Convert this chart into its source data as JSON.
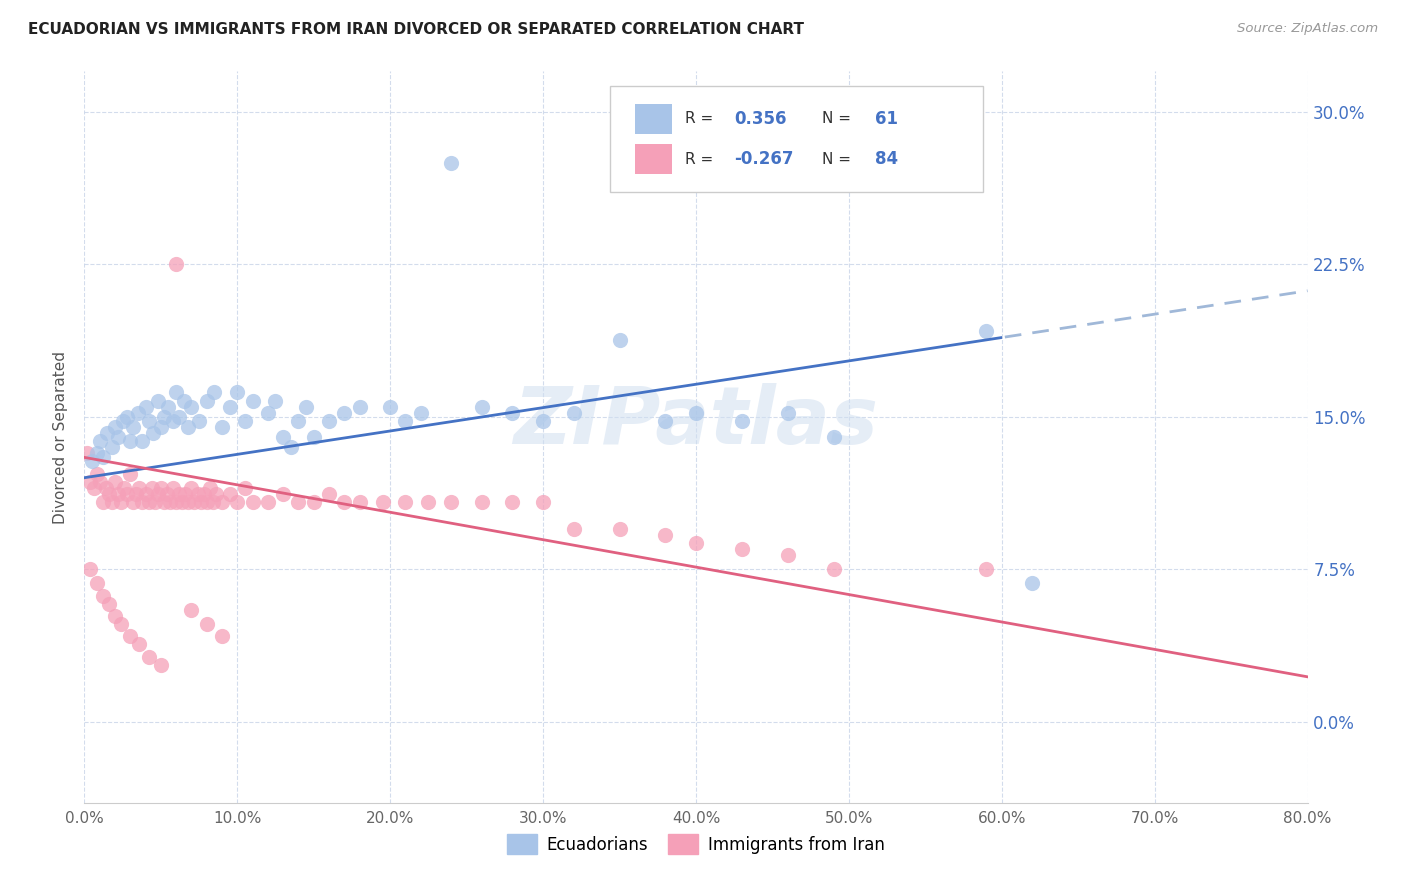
{
  "title": "ECUADORIAN VS IMMIGRANTS FROM IRAN DIVORCED OR SEPARATED CORRELATION CHART",
  "source": "Source: ZipAtlas.com",
  "ylabel_label": "Divorced or Separated",
  "legend_label1": "Ecuadorians",
  "legend_label2": "Immigrants from Iran",
  "R1": 0.356,
  "N1": 61,
  "R2": -0.267,
  "N2": 84,
  "color_blue": "#a8c4e8",
  "color_pink": "#f5a0b8",
  "color_blue_line": "#4472c4",
  "color_pink_line": "#e06080",
  "color_blue_dash": "#a0b8d8",
  "color_blue_text": "#4472c4",
  "watermark": "ZIPatlas",
  "blue_scatter_x": [
    0.005,
    0.008,
    0.01,
    0.012,
    0.015,
    0.018,
    0.02,
    0.022,
    0.025,
    0.028,
    0.03,
    0.032,
    0.035,
    0.038,
    0.04,
    0.042,
    0.045,
    0.048,
    0.05,
    0.052,
    0.055,
    0.058,
    0.06,
    0.062,
    0.065,
    0.068,
    0.07,
    0.075,
    0.08,
    0.085,
    0.09,
    0.095,
    0.1,
    0.105,
    0.11,
    0.12,
    0.125,
    0.13,
    0.135,
    0.14,
    0.145,
    0.15,
    0.16,
    0.17,
    0.18,
    0.2,
    0.21,
    0.22,
    0.24,
    0.26,
    0.28,
    0.3,
    0.32,
    0.35,
    0.38,
    0.4,
    0.43,
    0.46,
    0.49,
    0.59,
    0.62
  ],
  "blue_scatter_y": [
    0.128,
    0.132,
    0.138,
    0.13,
    0.142,
    0.135,
    0.145,
    0.14,
    0.148,
    0.15,
    0.138,
    0.145,
    0.152,
    0.138,
    0.155,
    0.148,
    0.142,
    0.158,
    0.145,
    0.15,
    0.155,
    0.148,
    0.162,
    0.15,
    0.158,
    0.145,
    0.155,
    0.148,
    0.158,
    0.162,
    0.145,
    0.155,
    0.162,
    0.148,
    0.158,
    0.152,
    0.158,
    0.14,
    0.135,
    0.148,
    0.155,
    0.14,
    0.148,
    0.152,
    0.155,
    0.155,
    0.148,
    0.152,
    0.275,
    0.155,
    0.152,
    0.148,
    0.152,
    0.188,
    0.148,
    0.152,
    0.148,
    0.152,
    0.14,
    0.192,
    0.068
  ],
  "pink_scatter_x": [
    0.002,
    0.004,
    0.006,
    0.008,
    0.01,
    0.012,
    0.014,
    0.016,
    0.018,
    0.02,
    0.022,
    0.024,
    0.026,
    0.028,
    0.03,
    0.032,
    0.034,
    0.036,
    0.038,
    0.04,
    0.042,
    0.044,
    0.046,
    0.048,
    0.05,
    0.052,
    0.054,
    0.056,
    0.058,
    0.06,
    0.062,
    0.064,
    0.066,
    0.068,
    0.07,
    0.072,
    0.074,
    0.076,
    0.078,
    0.08,
    0.082,
    0.084,
    0.086,
    0.09,
    0.095,
    0.1,
    0.105,
    0.11,
    0.12,
    0.13,
    0.14,
    0.15,
    0.16,
    0.17,
    0.18,
    0.195,
    0.21,
    0.225,
    0.24,
    0.26,
    0.28,
    0.3,
    0.32,
    0.35,
    0.38,
    0.4,
    0.43,
    0.46,
    0.49,
    0.59,
    0.004,
    0.008,
    0.012,
    0.016,
    0.02,
    0.024,
    0.03,
    0.036,
    0.042,
    0.05,
    0.06,
    0.07,
    0.08,
    0.09
  ],
  "pink_scatter_y": [
    0.132,
    0.118,
    0.115,
    0.122,
    0.118,
    0.108,
    0.115,
    0.112,
    0.108,
    0.118,
    0.112,
    0.108,
    0.115,
    0.112,
    0.122,
    0.108,
    0.112,
    0.115,
    0.108,
    0.112,
    0.108,
    0.115,
    0.108,
    0.112,
    0.115,
    0.108,
    0.112,
    0.108,
    0.115,
    0.108,
    0.112,
    0.108,
    0.112,
    0.108,
    0.115,
    0.108,
    0.112,
    0.108,
    0.112,
    0.108,
    0.115,
    0.108,
    0.112,
    0.108,
    0.112,
    0.108,
    0.115,
    0.108,
    0.108,
    0.112,
    0.108,
    0.108,
    0.112,
    0.108,
    0.108,
    0.108,
    0.108,
    0.108,
    0.108,
    0.108,
    0.108,
    0.108,
    0.095,
    0.095,
    0.092,
    0.088,
    0.085,
    0.082,
    0.075,
    0.075,
    0.075,
    0.068,
    0.062,
    0.058,
    0.052,
    0.048,
    0.042,
    0.038,
    0.032,
    0.028,
    0.225,
    0.055,
    0.048,
    0.042
  ],
  "xlim": [
    0.0,
    0.8
  ],
  "ylim": [
    -0.04,
    0.32
  ],
  "xticks": [
    0.0,
    0.1,
    0.2,
    0.3,
    0.4,
    0.5,
    0.6,
    0.7,
    0.8
  ],
  "yticks": [
    0.0,
    0.075,
    0.15,
    0.225,
    0.3
  ],
  "figsize": [
    14.06,
    8.92
  ],
  "dpi": 100
}
